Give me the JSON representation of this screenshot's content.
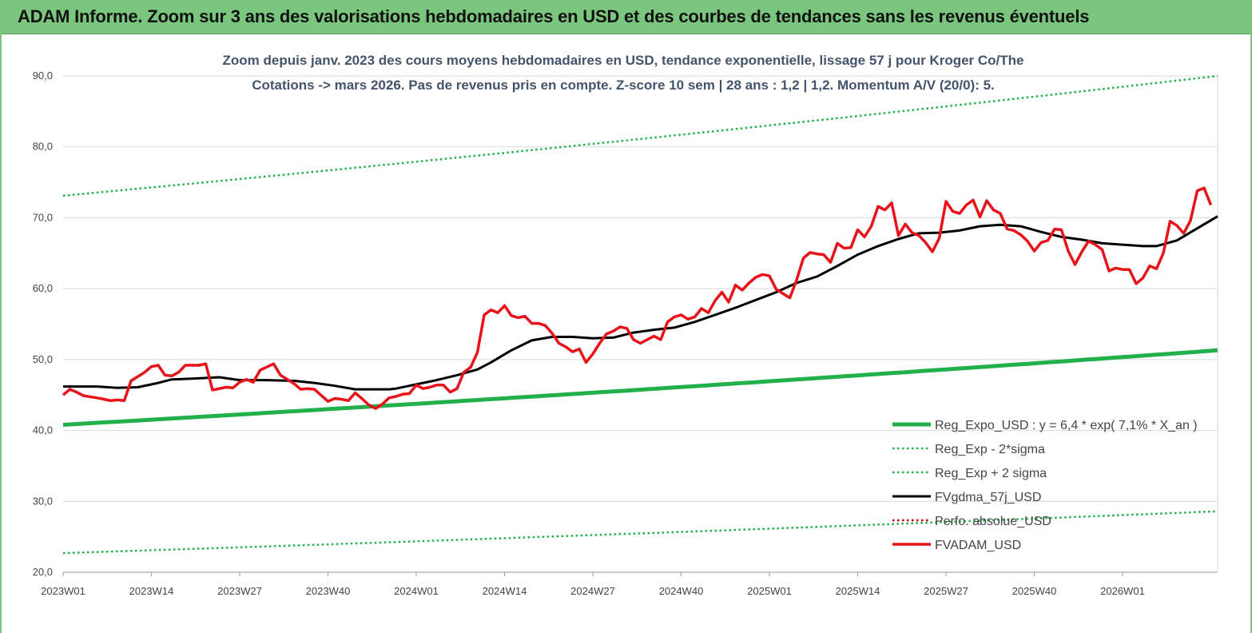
{
  "header": {
    "title": "ADAM Informe. Zoom sur 3 ans des valorisations hebdomadaires en USD et des courbes de tendances sans les revenus éventuels"
  },
  "colors": {
    "header_bg": "#7bc67e",
    "reg_expo": "#22b04d",
    "band": "#22b04d",
    "smooth": "#000000",
    "perfo": "#c00000",
    "price": "#e8141c"
  },
  "chart_data": {
    "type": "line",
    "subtitle_line1": "Zoom depuis janv. 2023 des cours moyens hebdomadaires en USD, tendance exponentielle, lissage 57 j pour Kroger Co/The",
    "subtitle_line2": "Cotations -> mars 2026. Pas de revenus pris en compte. Z-score 10 sem | 28 ans : 1,2 | 1,2. Momentum A/V (20/0): 5.",
    "ylim": [
      20,
      90
    ],
    "y_ticks": [
      "20,0",
      "30,0",
      "40,0",
      "50,0",
      "60,0",
      "70,0",
      "80,0",
      "90,0"
    ],
    "x_ticks": [
      "2023W01",
      "2023W14",
      "2023W27",
      "2023W40",
      "2024W01",
      "2024W14",
      "2024W27",
      "2024W40",
      "2025W01",
      "2025W14",
      "2025W27",
      "2025W40",
      "2026W01"
    ],
    "n_weeks": 170,
    "grid": true,
    "legend_position": "bottom-right",
    "legend": [
      {
        "label": "Reg_Expo_USD : y = 6,4 * exp( 7,1% * X_an )",
        "style": "solid-green-thick"
      },
      {
        "label": "Reg_Exp - 2*sigma",
        "style": "dotted-green"
      },
      {
        "label": "Reg_Exp + 2 sigma",
        "style": "dotted-green"
      },
      {
        "label": "FVgdma_57j_USD",
        "style": "solid-black"
      },
      {
        "label": "Perfo. absolue_USD",
        "style": "dotted-red"
      },
      {
        "label": "FVADAM_USD",
        "style": "solid-red"
      }
    ],
    "series": [
      {
        "name": "Reg_Expo_USD : y = 6,4 * exp( 7,1% * X_an )",
        "start": 40.8,
        "end": 51.3
      },
      {
        "name": "Reg_Exp - 2*sigma",
        "start": 22.7,
        "end": 28.6
      },
      {
        "name": "Reg_Exp + 2 sigma",
        "start": 73.1,
        "end": 90.0
      },
      {
        "name": "FVgdma_57j_USD",
        "points": [
          [
            0,
            46.2
          ],
          [
            5,
            46.2
          ],
          [
            8,
            46.0
          ],
          [
            11,
            46.1
          ],
          [
            14,
            46.7
          ],
          [
            16,
            47.2
          ],
          [
            19,
            47.3
          ],
          [
            21,
            47.4
          ],
          [
            23,
            47.5
          ],
          [
            26,
            47.1
          ],
          [
            30,
            47.1
          ],
          [
            34,
            47.0
          ],
          [
            37,
            46.7
          ],
          [
            40,
            46.3
          ],
          [
            43,
            45.8
          ],
          [
            48,
            45.8
          ],
          [
            49,
            45.9
          ],
          [
            52,
            46.5
          ],
          [
            55,
            47.1
          ],
          [
            58,
            47.8
          ],
          [
            61,
            48.6
          ],
          [
            63,
            49.6
          ],
          [
            66,
            51.3
          ],
          [
            69,
            52.7
          ],
          [
            72,
            53.2
          ],
          [
            75,
            53.2
          ],
          [
            78,
            53.0
          ],
          [
            81,
            53.1
          ],
          [
            84,
            53.8
          ],
          [
            87,
            54.2
          ],
          [
            90,
            54.5
          ],
          [
            93,
            55.3
          ],
          [
            96,
            56.3
          ],
          [
            99,
            57.3
          ],
          [
            102,
            58.4
          ],
          [
            105,
            59.5
          ],
          [
            108,
            60.8
          ],
          [
            111,
            61.7
          ],
          [
            114,
            63.2
          ],
          [
            117,
            64.8
          ],
          [
            120,
            66.0
          ],
          [
            123,
            67.0
          ],
          [
            126,
            67.8
          ],
          [
            129,
            67.9
          ],
          [
            132,
            68.2
          ],
          [
            135,
            68.8
          ],
          [
            138,
            69.0
          ],
          [
            141,
            68.8
          ],
          [
            144,
            68.0
          ],
          [
            147,
            67.3
          ],
          [
            150,
            66.9
          ],
          [
            153,
            66.4
          ],
          [
            156,
            66.2
          ],
          [
            159,
            66.0
          ],
          [
            161,
            66.0
          ],
          [
            164,
            66.8
          ],
          [
            167,
            68.5
          ],
          [
            170,
            70.2
          ]
        ]
      },
      {
        "name": "FVADAM_USD",
        "points": [
          [
            0,
            45.0
          ],
          [
            1,
            45.8
          ],
          [
            2,
            45.4
          ],
          [
            3,
            44.9
          ],
          [
            5,
            44.6
          ],
          [
            6,
            44.4
          ],
          [
            7,
            44.2
          ],
          [
            8,
            44.3
          ],
          [
            9,
            44.2
          ],
          [
            10,
            47.0
          ],
          [
            12,
            48.2
          ],
          [
            13,
            49.0
          ],
          [
            14,
            49.2
          ],
          [
            15,
            47.8
          ],
          [
            16,
            47.7
          ],
          [
            17,
            48.2
          ],
          [
            18,
            49.2
          ],
          [
            20,
            49.2
          ],
          [
            21,
            49.4
          ],
          [
            22,
            45.7
          ],
          [
            24,
            46.1
          ],
          [
            25,
            46.0
          ],
          [
            26,
            46.8
          ],
          [
            27,
            47.2
          ],
          [
            28,
            46.8
          ],
          [
            29,
            48.5
          ],
          [
            31,
            49.4
          ],
          [
            32,
            47.8
          ],
          [
            34,
            46.6
          ],
          [
            35,
            45.8
          ],
          [
            36,
            45.9
          ],
          [
            37,
            45.8
          ],
          [
            39,
            44.1
          ],
          [
            40,
            44.5
          ],
          [
            41,
            44.4
          ],
          [
            42,
            44.2
          ],
          [
            43,
            45.3
          ],
          [
            44,
            44.5
          ],
          [
            45,
            43.6
          ],
          [
            46,
            43.1
          ],
          [
            47,
            43.7
          ],
          [
            48,
            44.6
          ],
          [
            49,
            44.8
          ],
          [
            50,
            45.1
          ],
          [
            51,
            45.2
          ],
          [
            52,
            46.4
          ],
          [
            53,
            45.9
          ],
          [
            54,
            46.1
          ],
          [
            55,
            46.4
          ],
          [
            56,
            46.4
          ],
          [
            57,
            45.4
          ],
          [
            58,
            45.9
          ],
          [
            59,
            48.2
          ],
          [
            60,
            48.9
          ],
          [
            61,
            51.0
          ],
          [
            62,
            56.3
          ],
          [
            63,
            57.0
          ],
          [
            64,
            56.6
          ],
          [
            65,
            57.6
          ],
          [
            66,
            56.2
          ],
          [
            67,
            55.9
          ],
          [
            68,
            56.1
          ],
          [
            69,
            55.1
          ],
          [
            70,
            55.1
          ],
          [
            71,
            54.8
          ],
          [
            72,
            53.7
          ],
          [
            73,
            52.3
          ],
          [
            74,
            51.8
          ],
          [
            75,
            51.1
          ],
          [
            76,
            51.5
          ],
          [
            77,
            49.6
          ],
          [
            78,
            50.8
          ],
          [
            79,
            52.3
          ],
          [
            80,
            53.6
          ],
          [
            81,
            54.0
          ],
          [
            82,
            54.6
          ],
          [
            83,
            54.4
          ],
          [
            84,
            52.8
          ],
          [
            85,
            52.3
          ],
          [
            86,
            52.8
          ],
          [
            87,
            53.3
          ],
          [
            88,
            52.8
          ],
          [
            89,
            55.3
          ],
          [
            90,
            56.0
          ],
          [
            91,
            56.3
          ],
          [
            92,
            55.7
          ],
          [
            93,
            56.0
          ],
          [
            94,
            57.2
          ],
          [
            95,
            56.6
          ],
          [
            96,
            58.3
          ],
          [
            97,
            59.5
          ],
          [
            98,
            58.1
          ],
          [
            99,
            60.5
          ],
          [
            100,
            59.8
          ],
          [
            101,
            60.8
          ],
          [
            102,
            61.6
          ],
          [
            103,
            62.0
          ],
          [
            104,
            61.8
          ],
          [
            105,
            59.9
          ],
          [
            106,
            59.3
          ],
          [
            107,
            58.7
          ],
          [
            108,
            61.2
          ],
          [
            109,
            64.3
          ],
          [
            110,
            65.1
          ],
          [
            111,
            64.9
          ],
          [
            112,
            64.8
          ],
          [
            113,
            63.7
          ],
          [
            114,
            66.4
          ],
          [
            115,
            65.7
          ],
          [
            116,
            65.8
          ],
          [
            117,
            68.3
          ],
          [
            118,
            67.3
          ],
          [
            119,
            68.8
          ],
          [
            120,
            71.6
          ],
          [
            121,
            71.1
          ],
          [
            122,
            72.1
          ],
          [
            123,
            67.5
          ],
          [
            124,
            69.1
          ],
          [
            125,
            67.9
          ],
          [
            126,
            67.5
          ],
          [
            127,
            66.5
          ],
          [
            128,
            65.2
          ],
          [
            129,
            67.1
          ],
          [
            130,
            72.3
          ],
          [
            131,
            70.9
          ],
          [
            132,
            70.6
          ],
          [
            133,
            71.8
          ],
          [
            134,
            72.5
          ],
          [
            135,
            70.1
          ],
          [
            136,
            72.4
          ],
          [
            137,
            71.1
          ],
          [
            138,
            70.6
          ],
          [
            139,
            68.4
          ],
          [
            140,
            68.2
          ],
          [
            141,
            67.6
          ],
          [
            142,
            66.7
          ],
          [
            143,
            65.3
          ],
          [
            144,
            66.5
          ],
          [
            145,
            66.8
          ],
          [
            146,
            68.4
          ],
          [
            147,
            68.3
          ],
          [
            148,
            65.3
          ],
          [
            149,
            63.4
          ],
          [
            150,
            65.2
          ],
          [
            151,
            66.7
          ],
          [
            152,
            66.2
          ],
          [
            153,
            65.5
          ],
          [
            154,
            62.5
          ],
          [
            155,
            62.9
          ],
          [
            156,
            62.7
          ],
          [
            157,
            62.7
          ],
          [
            158,
            60.7
          ],
          [
            159,
            61.5
          ],
          [
            160,
            63.2
          ],
          [
            161,
            62.8
          ],
          [
            162,
            65.0
          ],
          [
            163,
            69.5
          ],
          [
            164,
            68.9
          ],
          [
            165,
            67.8
          ],
          [
            166,
            69.6
          ],
          [
            167,
            73.8
          ],
          [
            168,
            74.2
          ],
          [
            169,
            71.8
          ]
        ]
      }
    ]
  }
}
